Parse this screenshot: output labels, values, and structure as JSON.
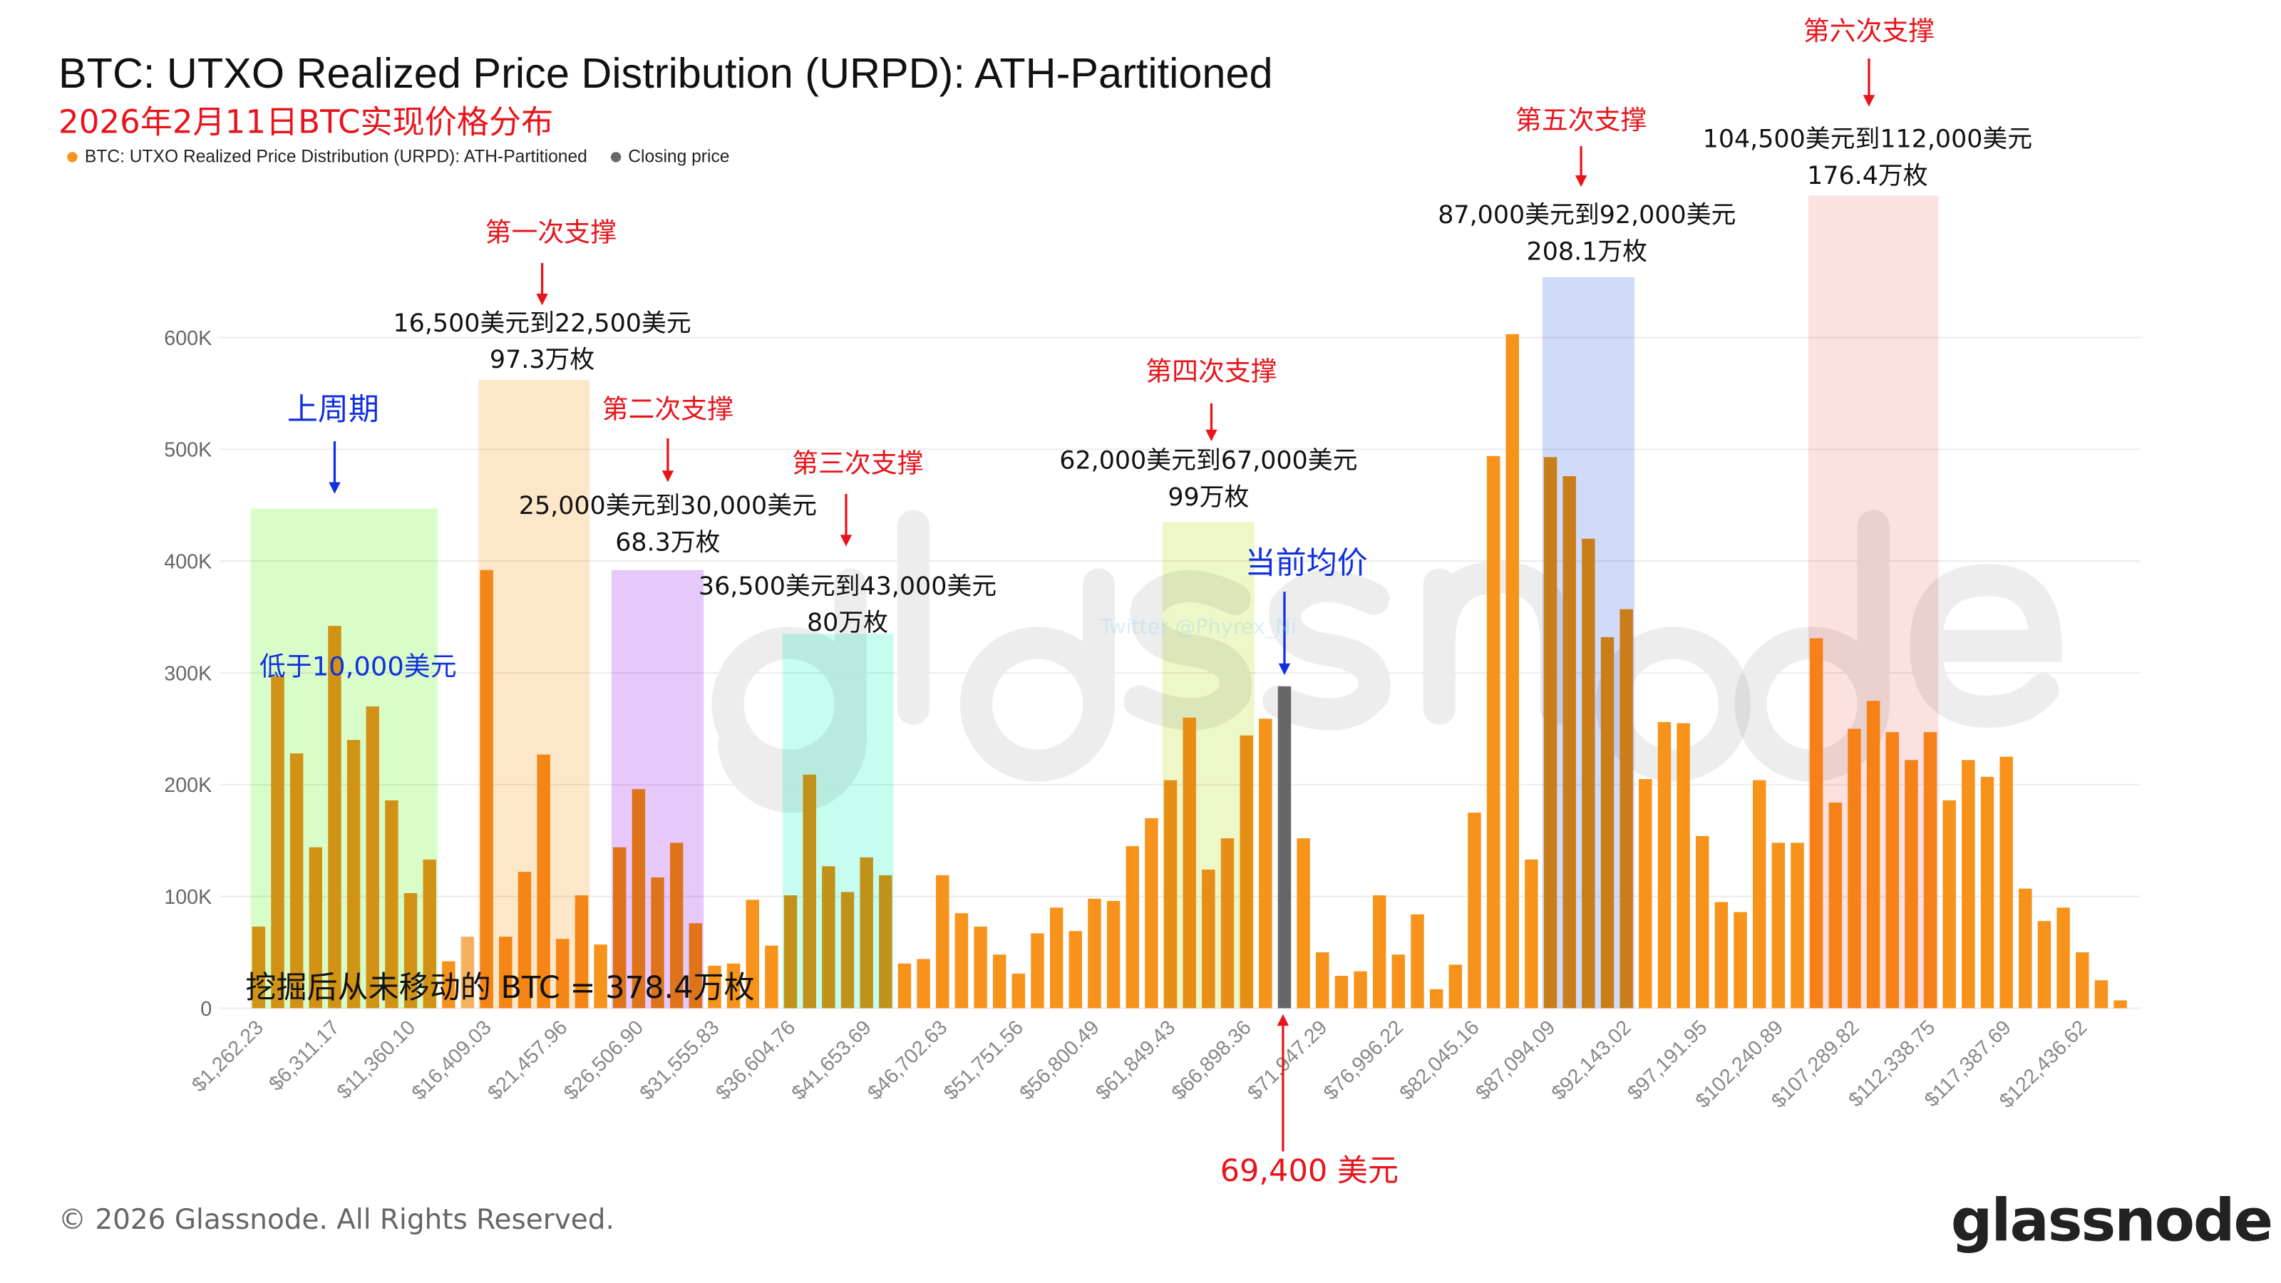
{
  "header": {
    "title": "BTC: UTXO Realized Price Distribution (URPD): ATH-Partitioned",
    "subtitle": "2026年2月11日BTC实现价格分布",
    "legend": [
      {
        "label": "BTC: UTXO Realized Price Distribution (URPD): ATH-Partitioned",
        "color": "#f7931a"
      },
      {
        "label": "Closing price",
        "color": "#666666"
      }
    ]
  },
  "chart_data": {
    "type": "bar",
    "title": "BTC: UTXO Realized Price Distribution (URPD): ATH-Partitioned",
    "bin_width": 1262.23,
    "x_first_bin": 1262.23,
    "values": [
      73000,
      297000,
      228000,
      144000,
      342000,
      240000,
      270000,
      186000,
      103000,
      133000,
      42000,
      64000,
      392000,
      64000,
      122000,
      227000,
      62000,
      101000,
      57000,
      144000,
      196000,
      117000,
      148000,
      76000,
      38000,
      40000,
      97000,
      56000,
      101000,
      209000,
      127000,
      104000,
      135000,
      119000,
      40000,
      44000,
      119000,
      85000,
      73000,
      48000,
      31000,
      67000,
      90000,
      69000,
      98000,
      96000,
      145000,
      170000,
      204000,
      260000,
      124000,
      152000,
      244000,
      259000,
      288000,
      152000,
      50000,
      29000,
      33000,
      101000,
      48000,
      84000,
      17000,
      39000,
      175000,
      494000,
      603000,
      133000,
      493000,
      476000,
      420000,
      332000,
      357000,
      205000,
      256000,
      255000,
      154000,
      95000,
      86000,
      204000,
      148000,
      148000,
      331000,
      184000,
      250000,
      275000,
      247000,
      222000,
      247000,
      186000,
      222000,
      207000,
      225000,
      107000,
      78000,
      90000,
      50000,
      25000,
      7000
    ],
    "closing_price_bin": 55,
    "highlighted_bins": {
      "light": [
        12
      ]
    },
    "y_ticks": [
      "0",
      "100K",
      "200K",
      "300K",
      "400K",
      "500K",
      "600K"
    ],
    "ylim": [
      0,
      600000
    ],
    "grid": true,
    "tick_labels": [
      "$1,262.23",
      "$6,311.17",
      "$11,360.10",
      "$16,409.03",
      "$21,457.96",
      "$26,506.90",
      "$31,555.83",
      "$36,604.76",
      "$41,653.69",
      "$46,702.63",
      "$51,751.56",
      "$56,800.49",
      "$61,849.43",
      "$66,898.36",
      "$71,947.29",
      "$76,996.22",
      "$82,045.16",
      "$87,094.09",
      "$92,143.02",
      "$97,191.95",
      "$102,240.89",
      "$107,289.82",
      "$112,338.75",
      "$117,387.69",
      "$122,436.62"
    ],
    "tick_every": 4,
    "colors": {
      "bar": "#f7931a",
      "bar_light": "#f5b060",
      "closing": "#666666"
    },
    "zones": [
      {
        "from_bin": 1,
        "to_bin": 10,
        "top": 447000,
        "color": "#d9fdc9"
      },
      {
        "from_bin": 13,
        "to_bin": 18,
        "top": 562000,
        "color": "#fde7c9"
      },
      {
        "from_bin": 20,
        "to_bin": 24,
        "top": 392000,
        "color": "#e6c8fb"
      },
      {
        "from_bin": 29,
        "to_bin": 34,
        "top": 335000,
        "color": "#c6fdf0"
      },
      {
        "from_bin": 49,
        "to_bin": 53,
        "top": 435000,
        "color": "#eef7c8"
      },
      {
        "from_bin": 69,
        "to_bin": 73,
        "top": 654000,
        "color": "#d0dbfa"
      },
      {
        "from_bin": 83,
        "to_bin": 89,
        "top": 727000,
        "color": "#fde0e0"
      }
    ]
  },
  "annotations": {
    "prev_cycle": "上周期",
    "below_10k": "低于10,000美元",
    "s1": {
      "label": "第一次支撑",
      "range": "16,500美元到22,500美元",
      "amount": "97.3万枚"
    },
    "s2": {
      "label": "第二次支撑",
      "range": "25,000美元到30,000美元",
      "amount": "68.3万枚"
    },
    "s3": {
      "label": "第三次支撑",
      "range": "36,500美元到43,000美元",
      "amount": "80万枚"
    },
    "s4": {
      "label": "第四次支撑",
      "range": "62,000美元到67,000美元",
      "amount": "99万枚"
    },
    "s5": {
      "label": "第五次支撑",
      "range": "87,000美元到92,000美元",
      "amount": "208.1万枚"
    },
    "s6": {
      "label": "第六次支撑",
      "range": "104,500美元到112,000美元",
      "amount": "176.4万枚"
    },
    "current_avg": "当前均价",
    "current_price": "69,400 美元",
    "never_moved": "挖掘后从未移动的 BTC = 378.4万枚",
    "twitter": "Twitter @Phyrex_Ni",
    "arrow_red": "#e8141b",
    "arrow_blue": "#1030e0"
  },
  "footer": {
    "copyright": "© 2026 Glassnode. All Rights Reserved.",
    "logo": "glassnode",
    "watermark": "glassnode"
  }
}
